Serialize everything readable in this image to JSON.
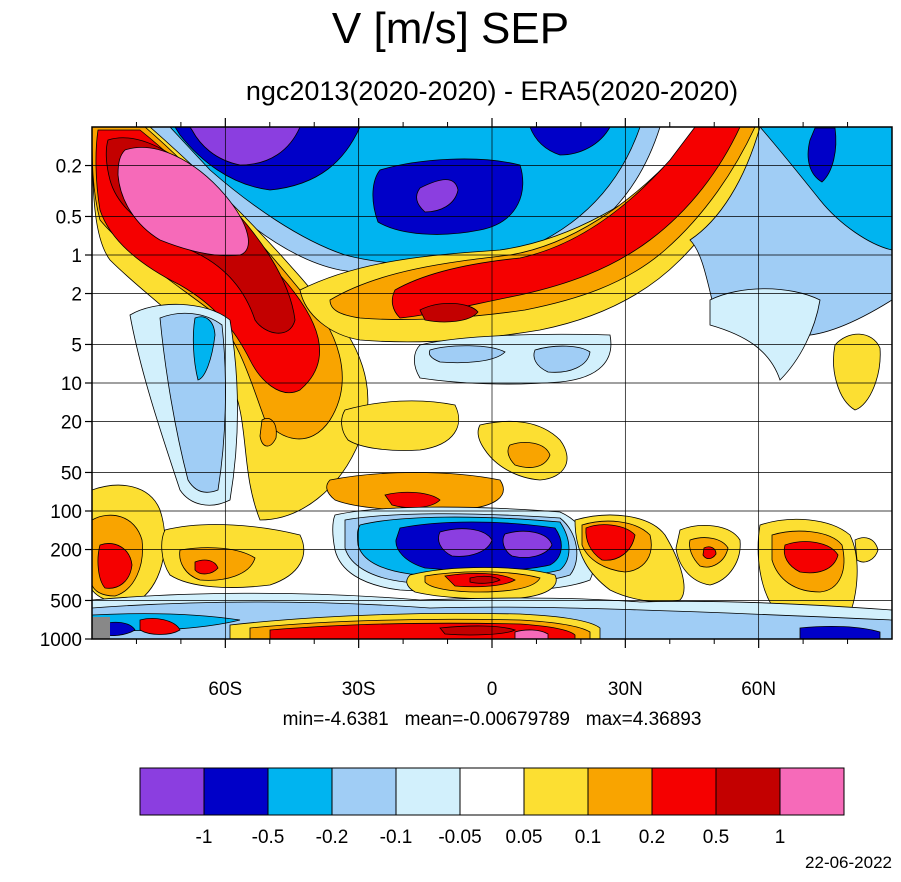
{
  "title": "V [m/s] SEP",
  "subtitle": "ngc2013(2020-2020) - ERA5(2020-2020)",
  "stats": {
    "min_label": "min=-4.6381",
    "mean_label": "mean=-0.00679789",
    "max_label": "max=4.36893"
  },
  "date": "22-06-2022",
  "chart_data": {
    "type": "heatmap",
    "title": "V [m/s] SEP",
    "subtitle": "ngc2013(2020-2020) - ERA5(2020-2020)",
    "x_axis": {
      "ticks": [
        -60,
        -30,
        0,
        30,
        60
      ],
      "tick_labels": [
        "60S",
        "30S",
        "0",
        "30N",
        "60N"
      ],
      "minor_ticks": [
        -80,
        -70,
        -50,
        -40,
        -20,
        -10,
        10,
        20,
        40,
        50,
        70,
        80
      ],
      "range": [
        -90,
        90
      ]
    },
    "y_axis": {
      "scale": "log",
      "reversed": true,
      "ticks": [
        0.2,
        0.5,
        1,
        2,
        5,
        10,
        20,
        50,
        100,
        200,
        500,
        1000
      ],
      "tick_labels": [
        "0.2",
        "0.5",
        "1",
        "2",
        "5",
        "10",
        "20",
        "50",
        "100",
        "200",
        "500",
        "1000"
      ],
      "range": [
        0.1,
        1000
      ]
    },
    "grid": true,
    "colorbar": {
      "levels": [
        "-1",
        "-0.5",
        "-0.2",
        "-0.1",
        "-0.05",
        "0.05",
        "0.1",
        "0.2",
        "0.5",
        "1"
      ],
      "colors": [
        "#8b3ee0",
        "#0000c8",
        "#00b4f0",
        "#a0cdf5",
        "#d2f0fc",
        "#ffffff",
        "#fcdf32",
        "#f9a400",
        "#f50000",
        "#c30000",
        "#f66ab9"
      ]
    },
    "regions": [
      {
        "lat": [
          -82,
          -48
        ],
        "p": [
          0.12,
          2
        ],
        "value": "0.2..0.5"
      },
      {
        "lat": [
          -74,
          -58
        ],
        "p": [
          0.15,
          0.9
        ],
        "value": ">1"
      },
      {
        "lat": [
          -60,
          0
        ],
        "p": [
          0.1,
          0.3
        ],
        "value": "-1..-0.5"
      },
      {
        "lat": [
          -20,
          10
        ],
        "p": [
          0.15,
          0.8
        ],
        "value": "-0.5..-1"
      },
      {
        "lat": [
          -22,
          50
        ],
        "p": [
          0.1,
          4
        ],
        "value": "0.2..0.5"
      },
      {
        "lat": [
          -68,
          -50
        ],
        "p": [
          3,
          80
        ],
        "value": "-0.1..-0.2"
      },
      {
        "lat": [
          -20,
          20
        ],
        "p": [
          130,
          230
        ],
        "value": "<-1"
      },
      {
        "lat": [
          -10,
          10
        ],
        "p": [
          320,
          400
        ],
        "value": "0.2..0.5"
      },
      {
        "lat": [
          25,
          40
        ],
        "p": [
          130,
          280
        ],
        "value": "0.2..0.5"
      },
      {
        "lat": [
          62,
          78
        ],
        "p": [
          180,
          320
        ],
        "value": "0.2..0.5"
      }
    ]
  }
}
